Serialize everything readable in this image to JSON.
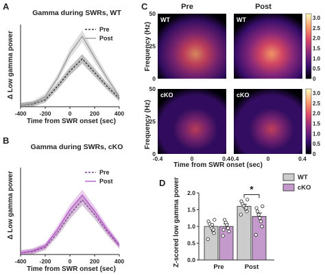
{
  "panel_letters": [
    "A",
    "B",
    "C",
    "D"
  ],
  "chart_data": [
    {
      "id": "A",
      "type": "line",
      "title": "Gamma during SWRs, WT",
      "xlabel": "Time from SWR onset (sec)",
      "ylabel": "Δ Low gamma power",
      "x": [
        -400,
        -300,
        -200,
        -100,
        0,
        100,
        200,
        300,
        400
      ],
      "xticks": [
        "-400",
        "-200",
        "0",
        "200",
        "400"
      ],
      "xlim": [
        -400,
        400
      ],
      "ylim": [
        0,
        1.2
      ],
      "legend": "top-right",
      "series": [
        {
          "name": "Pre",
          "style": "dashed",
          "color": "#333333",
          "values": [
            0.02,
            0.04,
            0.1,
            0.3,
            0.52,
            0.7,
            0.5,
            0.3,
            0.12
          ]
        },
        {
          "name": "Post",
          "style": "solid",
          "color": "#999999",
          "values": [
            0.02,
            0.05,
            0.15,
            0.42,
            0.78,
            1.03,
            0.72,
            0.42,
            0.15
          ]
        }
      ]
    },
    {
      "id": "B",
      "type": "line",
      "title": "Gamma during SWRs, cKO",
      "xlabel": "Time from SWR onset (sec)",
      "ylabel": "Δ Low gamma power",
      "x": [
        -400,
        -300,
        -200,
        -100,
        0,
        100,
        200,
        300,
        400
      ],
      "xticks": [
        "-400",
        "-200",
        "0",
        "200",
        "400"
      ],
      "xlim": [
        -400,
        400
      ],
      "ylim": [
        0,
        1.2
      ],
      "legend": "top-right",
      "series": [
        {
          "name": "Pre",
          "style": "dashed",
          "color": "#7a3d86",
          "values": [
            0.02,
            0.04,
            0.1,
            0.3,
            0.55,
            0.75,
            0.55,
            0.32,
            0.12
          ]
        },
        {
          "name": "Post",
          "style": "solid",
          "color": "#b55cc7",
          "values": [
            0.02,
            0.05,
            0.12,
            0.35,
            0.62,
            0.82,
            0.6,
            0.35,
            0.13
          ]
        }
      ]
    },
    {
      "id": "C",
      "type": "heatmap",
      "col_titles": [
        "Pre",
        "Post"
      ],
      "row_labels": [
        "WT",
        "cKO"
      ],
      "ylabel": "Frequency (Hz)",
      "yticks": [
        "0",
        "25",
        "50"
      ],
      "xlabel": "Time from SWR onset (sec)",
      "xticks": [
        "-0.4",
        "0",
        "0.4"
      ],
      "colorbar_ticks": [
        "0",
        "0.5",
        "1.0",
        "1.5",
        "2.0",
        "2.5",
        "3.0"
      ],
      "clim": [
        0,
        3.2
      ],
      "colormap": [
        "#000004",
        "#3b0f70",
        "#8c2981",
        "#de4968",
        "#fe9f6d",
        "#fcfdbf"
      ],
      "peaks": [
        [
          1.9,
          2.5
        ],
        [
          1.8,
          2.0
        ]
      ]
    },
    {
      "id": "D",
      "type": "bar",
      "ylabel": "Z-scored low gamma power",
      "categories": [
        "Pre",
        "Post"
      ],
      "ylim": [
        0,
        2
      ],
      "yticks": [
        "0.0",
        "0.5",
        "1.0",
        "1.5",
        "2.0"
      ],
      "significance": "*",
      "legend": "top-right",
      "series": [
        {
          "name": "WT",
          "color": "#cccccc",
          "values": [
            1.0,
            1.6
          ],
          "errors": [
            0.07,
            0.06
          ],
          "points": [
            [
              0.62,
              0.8,
              0.88,
              0.95,
              1.02,
              1.08,
              1.15,
              1.2,
              0.9,
              1.05
            ],
            [
              1.35,
              1.45,
              1.52,
              1.58,
              1.62,
              1.68,
              1.75,
              1.8,
              1.55
            ]
          ]
        },
        {
          "name": "cKO",
          "color": "#c49acc",
          "values": [
            1.0,
            1.3
          ],
          "errors": [
            0.08,
            0.1
          ],
          "points": [
            [
              0.72,
              0.85,
              0.95,
              1.05,
              1.12,
              1.2,
              0.9
            ],
            [
              0.75,
              1.0,
              1.15,
              1.25,
              1.35,
              1.45,
              1.55,
              1.6
            ]
          ]
        }
      ]
    }
  ]
}
